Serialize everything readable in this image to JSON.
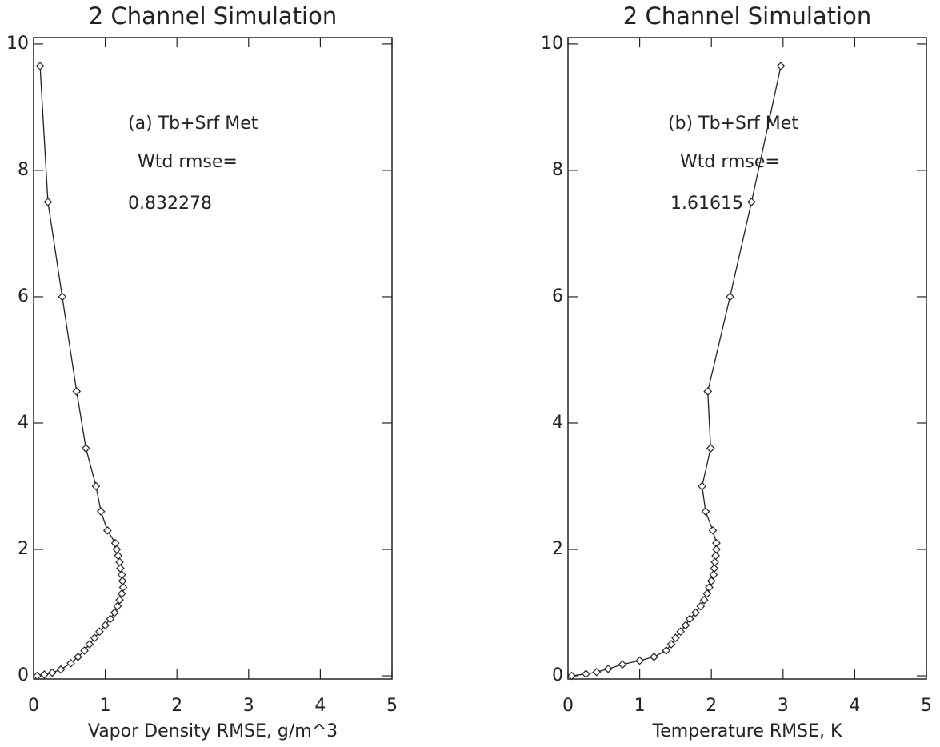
{
  "chart_data": [
    {
      "type": "line",
      "title": "2 Channel Simulation",
      "x_label": "Vapor Density RMSE, g/m^3",
      "annotations": [
        "(a) Tb+Srf Met",
        "Wtd rmse=",
        "0.832278"
      ],
      "xlim": [
        0,
        5
      ],
      "xticks": [
        0,
        1,
        2,
        3,
        4,
        5
      ],
      "ylim": [
        -0.05,
        10.1
      ],
      "yticks": [
        0,
        2,
        4,
        6,
        8,
        10
      ],
      "color": "#222222",
      "x": [
        0.09,
        0.2,
        0.4,
        0.6,
        0.73,
        0.87,
        0.94,
        1.03,
        1.14,
        1.16,
        1.18,
        1.2,
        1.21,
        1.23,
        1.24,
        1.25,
        1.23,
        1.2,
        1.17,
        1.13,
        1.07,
        1.0,
        0.92,
        0.85,
        0.78,
        0.71,
        0.62,
        0.52,
        0.38,
        0.26,
        0.15,
        0.05
      ],
      "values": [
        9.65,
        7.5,
        6.0,
        4.5,
        3.6,
        3.0,
        2.6,
        2.3,
        2.1,
        2.0,
        1.9,
        1.8,
        1.7,
        1.6,
        1.5,
        1.4,
        1.3,
        1.2,
        1.1,
        1.0,
        0.9,
        0.8,
        0.7,
        0.6,
        0.5,
        0.4,
        0.3,
        0.2,
        0.1,
        0.05,
        0.02,
        0.0
      ]
    },
    {
      "type": "line",
      "title": "2 Channel Simulation",
      "x_label": "Temperature RMSE, K",
      "annotations": [
        "(b) Tb+Srf Met",
        "Wtd rmse=",
        "1.61615"
      ],
      "xlim": [
        0,
        5
      ],
      "xticks": [
        0,
        1,
        2,
        3,
        4,
        5
      ],
      "ylim": [
        -0.05,
        10.1
      ],
      "yticks": [
        0,
        2,
        4,
        6,
        8,
        10
      ],
      "color": "#222222",
      "x": [
        2.97,
        2.56,
        2.26,
        1.95,
        1.99,
        1.87,
        1.92,
        2.02,
        2.07,
        2.07,
        2.06,
        2.05,
        2.04,
        2.03,
        2.0,
        1.97,
        1.94,
        1.9,
        1.85,
        1.78,
        1.7,
        1.64,
        1.57,
        1.5,
        1.44,
        1.37,
        1.2,
        1.0,
        0.76,
        0.56,
        0.4,
        0.25,
        0.05
      ],
      "values": [
        9.65,
        7.5,
        6.0,
        4.5,
        3.6,
        3.0,
        2.6,
        2.3,
        2.1,
        2.0,
        1.9,
        1.8,
        1.7,
        1.6,
        1.5,
        1.4,
        1.3,
        1.2,
        1.1,
        1.0,
        0.9,
        0.8,
        0.7,
        0.6,
        0.5,
        0.4,
        0.3,
        0.24,
        0.18,
        0.11,
        0.06,
        0.03,
        0.0
      ]
    }
  ]
}
